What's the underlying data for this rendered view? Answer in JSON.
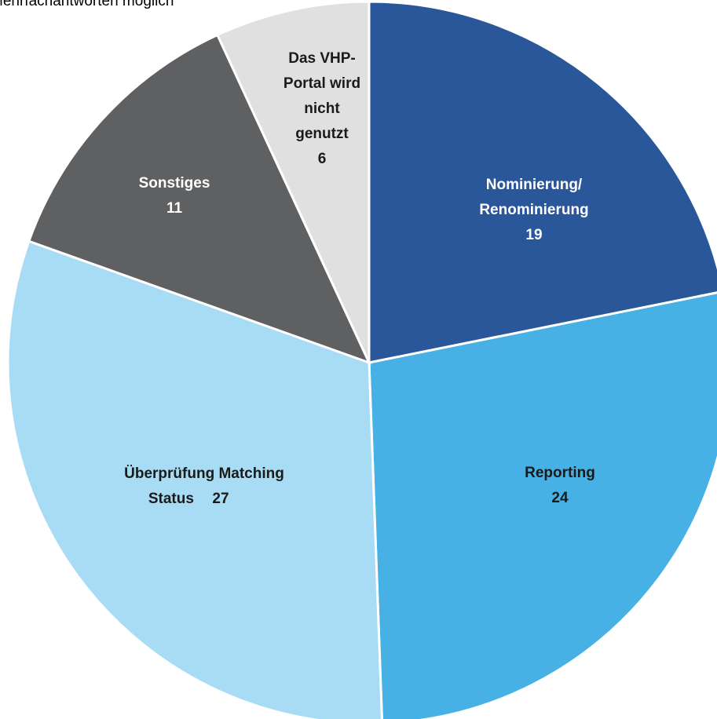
{
  "chart_data": {
    "type": "pie",
    "subtitle": "Mehrfachantworten möglich",
    "categories": [
      [
        "Nominierung/",
        "Renominierung"
      ],
      [
        "Reporting"
      ],
      [
        "Überprüfung Matching",
        "Status"
      ],
      [
        "Sonstiges"
      ],
      [
        "Das VHP-",
        "Portal wird",
        "nicht",
        "genutzt"
      ]
    ],
    "values": [
      19,
      24,
      27,
      11,
      6
    ],
    "colors": [
      "#2a579a",
      "#47b0e4",
      "#a8dcf4",
      "#5f6062",
      "#e0e0e0"
    ],
    "label_colors": [
      "#ffffff",
      "#1a1a1a",
      "#1a1a1a",
      "#ffffff",
      "#1a1a1a"
    ]
  }
}
